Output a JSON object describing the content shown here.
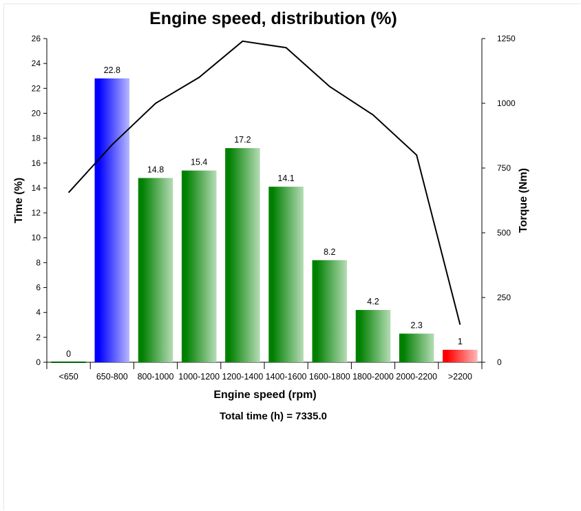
{
  "chart_data": {
    "type": "bar",
    "title": "Engine speed, distribution (%)",
    "xlabel": "Engine speed (rpm)",
    "ylabel": "Time (%)",
    "y2label": "Torque (Nm)",
    "footer": "Total time (h) = 7335.0",
    "categories": [
      "<650",
      "650-800",
      "800-1000",
      "1000-1200",
      "1200-1400",
      "1400-1600",
      "1600-1800",
      "1800-2000",
      "2000-2200",
      ">2200"
    ],
    "values": [
      0,
      22.8,
      14.8,
      15.4,
      17.2,
      14.1,
      8.2,
      4.2,
      2.3,
      1
    ],
    "value_labels": [
      "0",
      "22.8",
      "14.8",
      "15.4",
      "17.2",
      "14.1",
      "8.2",
      "4.2",
      "2.3",
      "1"
    ],
    "bar_colors": [
      "green",
      "blue",
      "green",
      "green",
      "green",
      "green",
      "green",
      "green",
      "green",
      "red"
    ],
    "torque_line": {
      "type": "line",
      "axis": "right",
      "values": [
        655,
        840,
        1000,
        1100,
        1240,
        1215,
        1065,
        955,
        800,
        145
      ]
    },
    "ylim": [
      0,
      26
    ],
    "yticks": [
      0,
      2,
      4,
      6,
      8,
      10,
      12,
      14,
      16,
      18,
      20,
      22,
      24,
      26
    ],
    "y2lim": [
      0,
      1250
    ],
    "y2ticks": [
      0,
      250,
      500,
      750,
      1000,
      1250
    ],
    "grid": false,
    "legend": "none",
    "colors": {
      "green_dark": "#008000",
      "green_light": "#b6dcb6",
      "blue_dark": "#0000ff",
      "blue_light": "#b8b8ff",
      "red_dark": "#ff0000",
      "red_light": "#ffb8b8",
      "line": "#000000"
    }
  }
}
